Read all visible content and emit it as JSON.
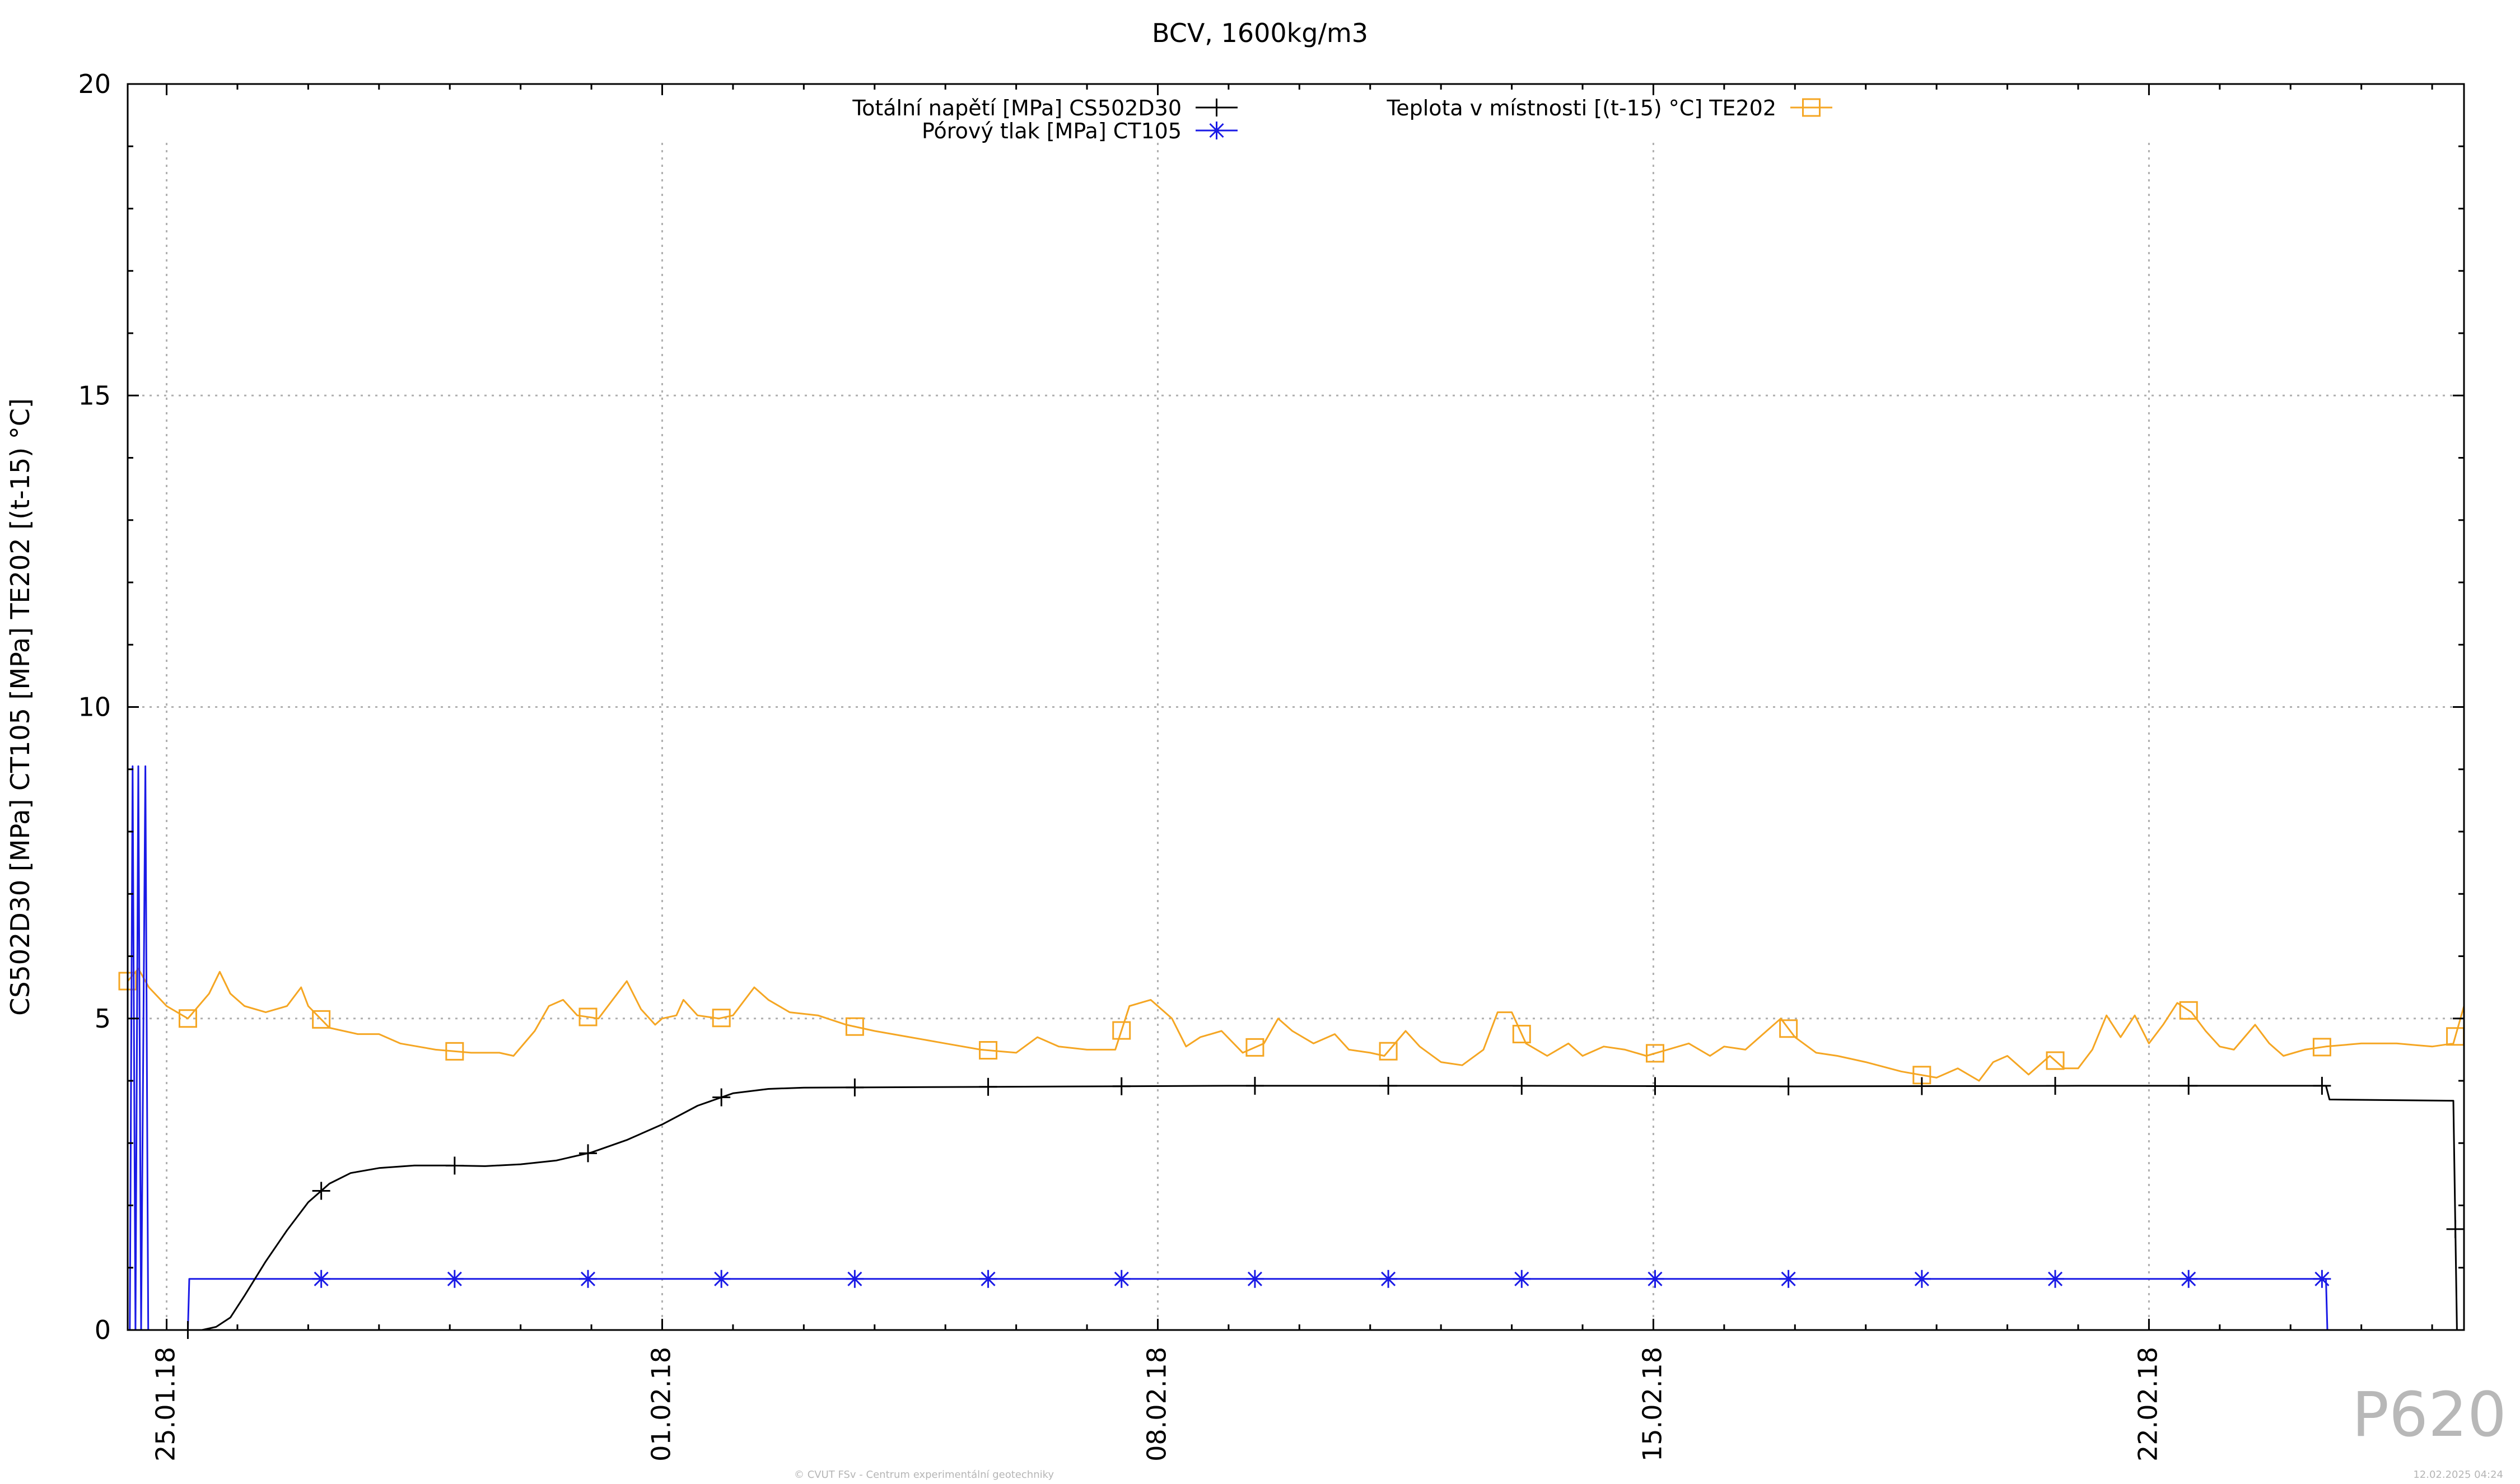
{
  "chart_data": {
    "type": "line",
    "title": "BCV, 1600kg/m3",
    "ylabel": "CS502D30 [MPa] CT105 [MPa] TE202 [(t-15) °C]",
    "xlabel": "",
    "ylim": [
      0,
      20
    ],
    "yticks": [
      0,
      5,
      10,
      15,
      20
    ],
    "y_minor_step": 1,
    "x_start": "2018-01-25",
    "x_end": "2018-02-27",
    "xlim_days": [
      24.45,
      57.45
    ],
    "xticks": [
      {
        "label": "25.01.18",
        "day": 25
      },
      {
        "label": "01.02.18",
        "day": 32
      },
      {
        "label": "08.02.18",
        "day": 39
      },
      {
        "label": "15.02.18",
        "day": 46
      },
      {
        "label": "22.02.18",
        "day": 53
      }
    ],
    "grid": true,
    "legend_position": "top",
    "series": [
      {
        "name": "Totální napětí [MPa] CS502D30",
        "color": "#000000",
        "marker": "plus",
        "points": [
          [
            25.3,
            0
          ],
          [
            25.5,
            0
          ],
          [
            25.7,
            0.05
          ],
          [
            25.9,
            0.2
          ],
          [
            26.1,
            0.55
          ],
          [
            26.4,
            1.1
          ],
          [
            26.7,
            1.6
          ],
          [
            27.0,
            2.05
          ],
          [
            27.3,
            2.35
          ],
          [
            27.6,
            2.52
          ],
          [
            28.0,
            2.6
          ],
          [
            28.5,
            2.64
          ],
          [
            29.0,
            2.64
          ],
          [
            29.5,
            2.63
          ],
          [
            30.0,
            2.66
          ],
          [
            30.5,
            2.72
          ],
          [
            31.0,
            2.85
          ],
          [
            31.5,
            3.05
          ],
          [
            32.0,
            3.3
          ],
          [
            32.5,
            3.6
          ],
          [
            33.0,
            3.8
          ],
          [
            33.5,
            3.87
          ],
          [
            34.0,
            3.89
          ],
          [
            36.0,
            3.9
          ],
          [
            40.0,
            3.92
          ],
          [
            44.0,
            3.92
          ],
          [
            48.0,
            3.91
          ],
          [
            52.0,
            3.92
          ],
          [
            55.5,
            3.92
          ],
          [
            55.55,
            3.7
          ],
          [
            57.3,
            3.68
          ],
          [
            57.35,
            0
          ],
          [
            57.45,
            0
          ]
        ]
      },
      {
        "name": "Pórový tlak [MPa] CT105",
        "color": "#1a1ae6",
        "marker": "star",
        "points": [
          [
            24.48,
            0
          ],
          [
            24.52,
            9.05
          ],
          [
            24.56,
            0
          ],
          [
            24.6,
            9.05
          ],
          [
            24.64,
            0
          ],
          [
            24.7,
            9.05
          ],
          [
            24.74,
            0
          ],
          [
            25.3,
            0
          ],
          [
            25.32,
            0.82
          ],
          [
            55.5,
            0.82
          ],
          [
            55.52,
            0
          ]
        ]
      },
      {
        "name": "Teplota v místnosti [(t-15) °C] TE202",
        "color": "#f5a623",
        "marker": "square",
        "points": [
          [
            24.45,
            5.6
          ],
          [
            24.6,
            5.8
          ],
          [
            24.75,
            5.5
          ],
          [
            25.0,
            5.2
          ],
          [
            25.3,
            5.0
          ],
          [
            25.6,
            5.4
          ],
          [
            25.75,
            5.75
          ],
          [
            25.9,
            5.4
          ],
          [
            26.1,
            5.2
          ],
          [
            26.4,
            5.1
          ],
          [
            26.7,
            5.2
          ],
          [
            26.9,
            5.5
          ],
          [
            27.0,
            5.2
          ],
          [
            27.3,
            4.85
          ],
          [
            27.7,
            4.75
          ],
          [
            28.0,
            4.75
          ],
          [
            28.3,
            4.6
          ],
          [
            28.8,
            4.5
          ],
          [
            29.3,
            4.45
          ],
          [
            29.7,
            4.45
          ],
          [
            29.9,
            4.4
          ],
          [
            30.2,
            4.8
          ],
          [
            30.4,
            5.2
          ],
          [
            30.6,
            5.3
          ],
          [
            30.8,
            5.05
          ],
          [
            31.1,
            5.0
          ],
          [
            31.3,
            5.3
          ],
          [
            31.5,
            5.6
          ],
          [
            31.7,
            5.15
          ],
          [
            31.9,
            4.9
          ],
          [
            32.0,
            5.0
          ],
          [
            32.2,
            5.05
          ],
          [
            32.3,
            5.3
          ],
          [
            32.5,
            5.05
          ],
          [
            32.8,
            5.0
          ],
          [
            33.0,
            5.05
          ],
          [
            33.3,
            5.5
          ],
          [
            33.5,
            5.3
          ],
          [
            33.8,
            5.1
          ],
          [
            34.2,
            5.05
          ],
          [
            34.6,
            4.9
          ],
          [
            35.0,
            4.8
          ],
          [
            35.5,
            4.7
          ],
          [
            36.0,
            4.6
          ],
          [
            36.5,
            4.5
          ],
          [
            37.0,
            4.45
          ],
          [
            37.3,
            4.7
          ],
          [
            37.6,
            4.55
          ],
          [
            38.0,
            4.5
          ],
          [
            38.4,
            4.5
          ],
          [
            38.6,
            5.2
          ],
          [
            38.9,
            5.3
          ],
          [
            39.2,
            5.0
          ],
          [
            39.4,
            4.55
          ],
          [
            39.6,
            4.7
          ],
          [
            39.9,
            4.8
          ],
          [
            40.2,
            4.45
          ],
          [
            40.5,
            4.6
          ],
          [
            40.7,
            5.0
          ],
          [
            40.9,
            4.8
          ],
          [
            41.2,
            4.6
          ],
          [
            41.5,
            4.75
          ],
          [
            41.7,
            4.5
          ],
          [
            42.0,
            4.45
          ],
          [
            42.2,
            4.4
          ],
          [
            42.5,
            4.8
          ],
          [
            42.7,
            4.55
          ],
          [
            43.0,
            4.3
          ],
          [
            43.3,
            4.25
          ],
          [
            43.6,
            4.5
          ],
          [
            43.8,
            5.1
          ],
          [
            44.0,
            5.1
          ],
          [
            44.2,
            4.6
          ],
          [
            44.5,
            4.4
          ],
          [
            44.8,
            4.6
          ],
          [
            45.0,
            4.4
          ],
          [
            45.3,
            4.55
          ],
          [
            45.6,
            4.5
          ],
          [
            45.9,
            4.4
          ],
          [
            46.2,
            4.5
          ],
          [
            46.5,
            4.6
          ],
          [
            46.8,
            4.4
          ],
          [
            47.0,
            4.55
          ],
          [
            47.3,
            4.5
          ],
          [
            47.6,
            4.8
          ],
          [
            47.8,
            5.0
          ],
          [
            48.0,
            4.7
          ],
          [
            48.3,
            4.45
          ],
          [
            48.6,
            4.4
          ],
          [
            49.0,
            4.3
          ],
          [
            49.5,
            4.15
          ],
          [
            50.0,
            4.05
          ],
          [
            50.3,
            4.2
          ],
          [
            50.6,
            4.0
          ],
          [
            50.8,
            4.3
          ],
          [
            51.0,
            4.4
          ],
          [
            51.3,
            4.1
          ],
          [
            51.6,
            4.4
          ],
          [
            51.8,
            4.2
          ],
          [
            52.0,
            4.2
          ],
          [
            52.2,
            4.5
          ],
          [
            52.4,
            5.05
          ],
          [
            52.6,
            4.7
          ],
          [
            52.8,
            5.05
          ],
          [
            53.0,
            4.6
          ],
          [
            53.2,
            4.9
          ],
          [
            53.4,
            5.25
          ],
          [
            53.6,
            5.1
          ],
          [
            53.8,
            4.8
          ],
          [
            54.0,
            4.55
          ],
          [
            54.2,
            4.5
          ],
          [
            54.5,
            4.9
          ],
          [
            54.7,
            4.6
          ],
          [
            54.9,
            4.4
          ],
          [
            55.2,
            4.5
          ],
          [
            55.5,
            4.55
          ],
          [
            56.0,
            4.6
          ],
          [
            56.5,
            4.6
          ],
          [
            57.0,
            4.55
          ],
          [
            57.3,
            4.6
          ],
          [
            57.45,
            5.2
          ]
        ]
      }
    ]
  },
  "watermark": "P620",
  "copyright": "© CVUT FSv - Centrum experimentální geotechniky",
  "timestamp": "12.02.2025 04:24"
}
